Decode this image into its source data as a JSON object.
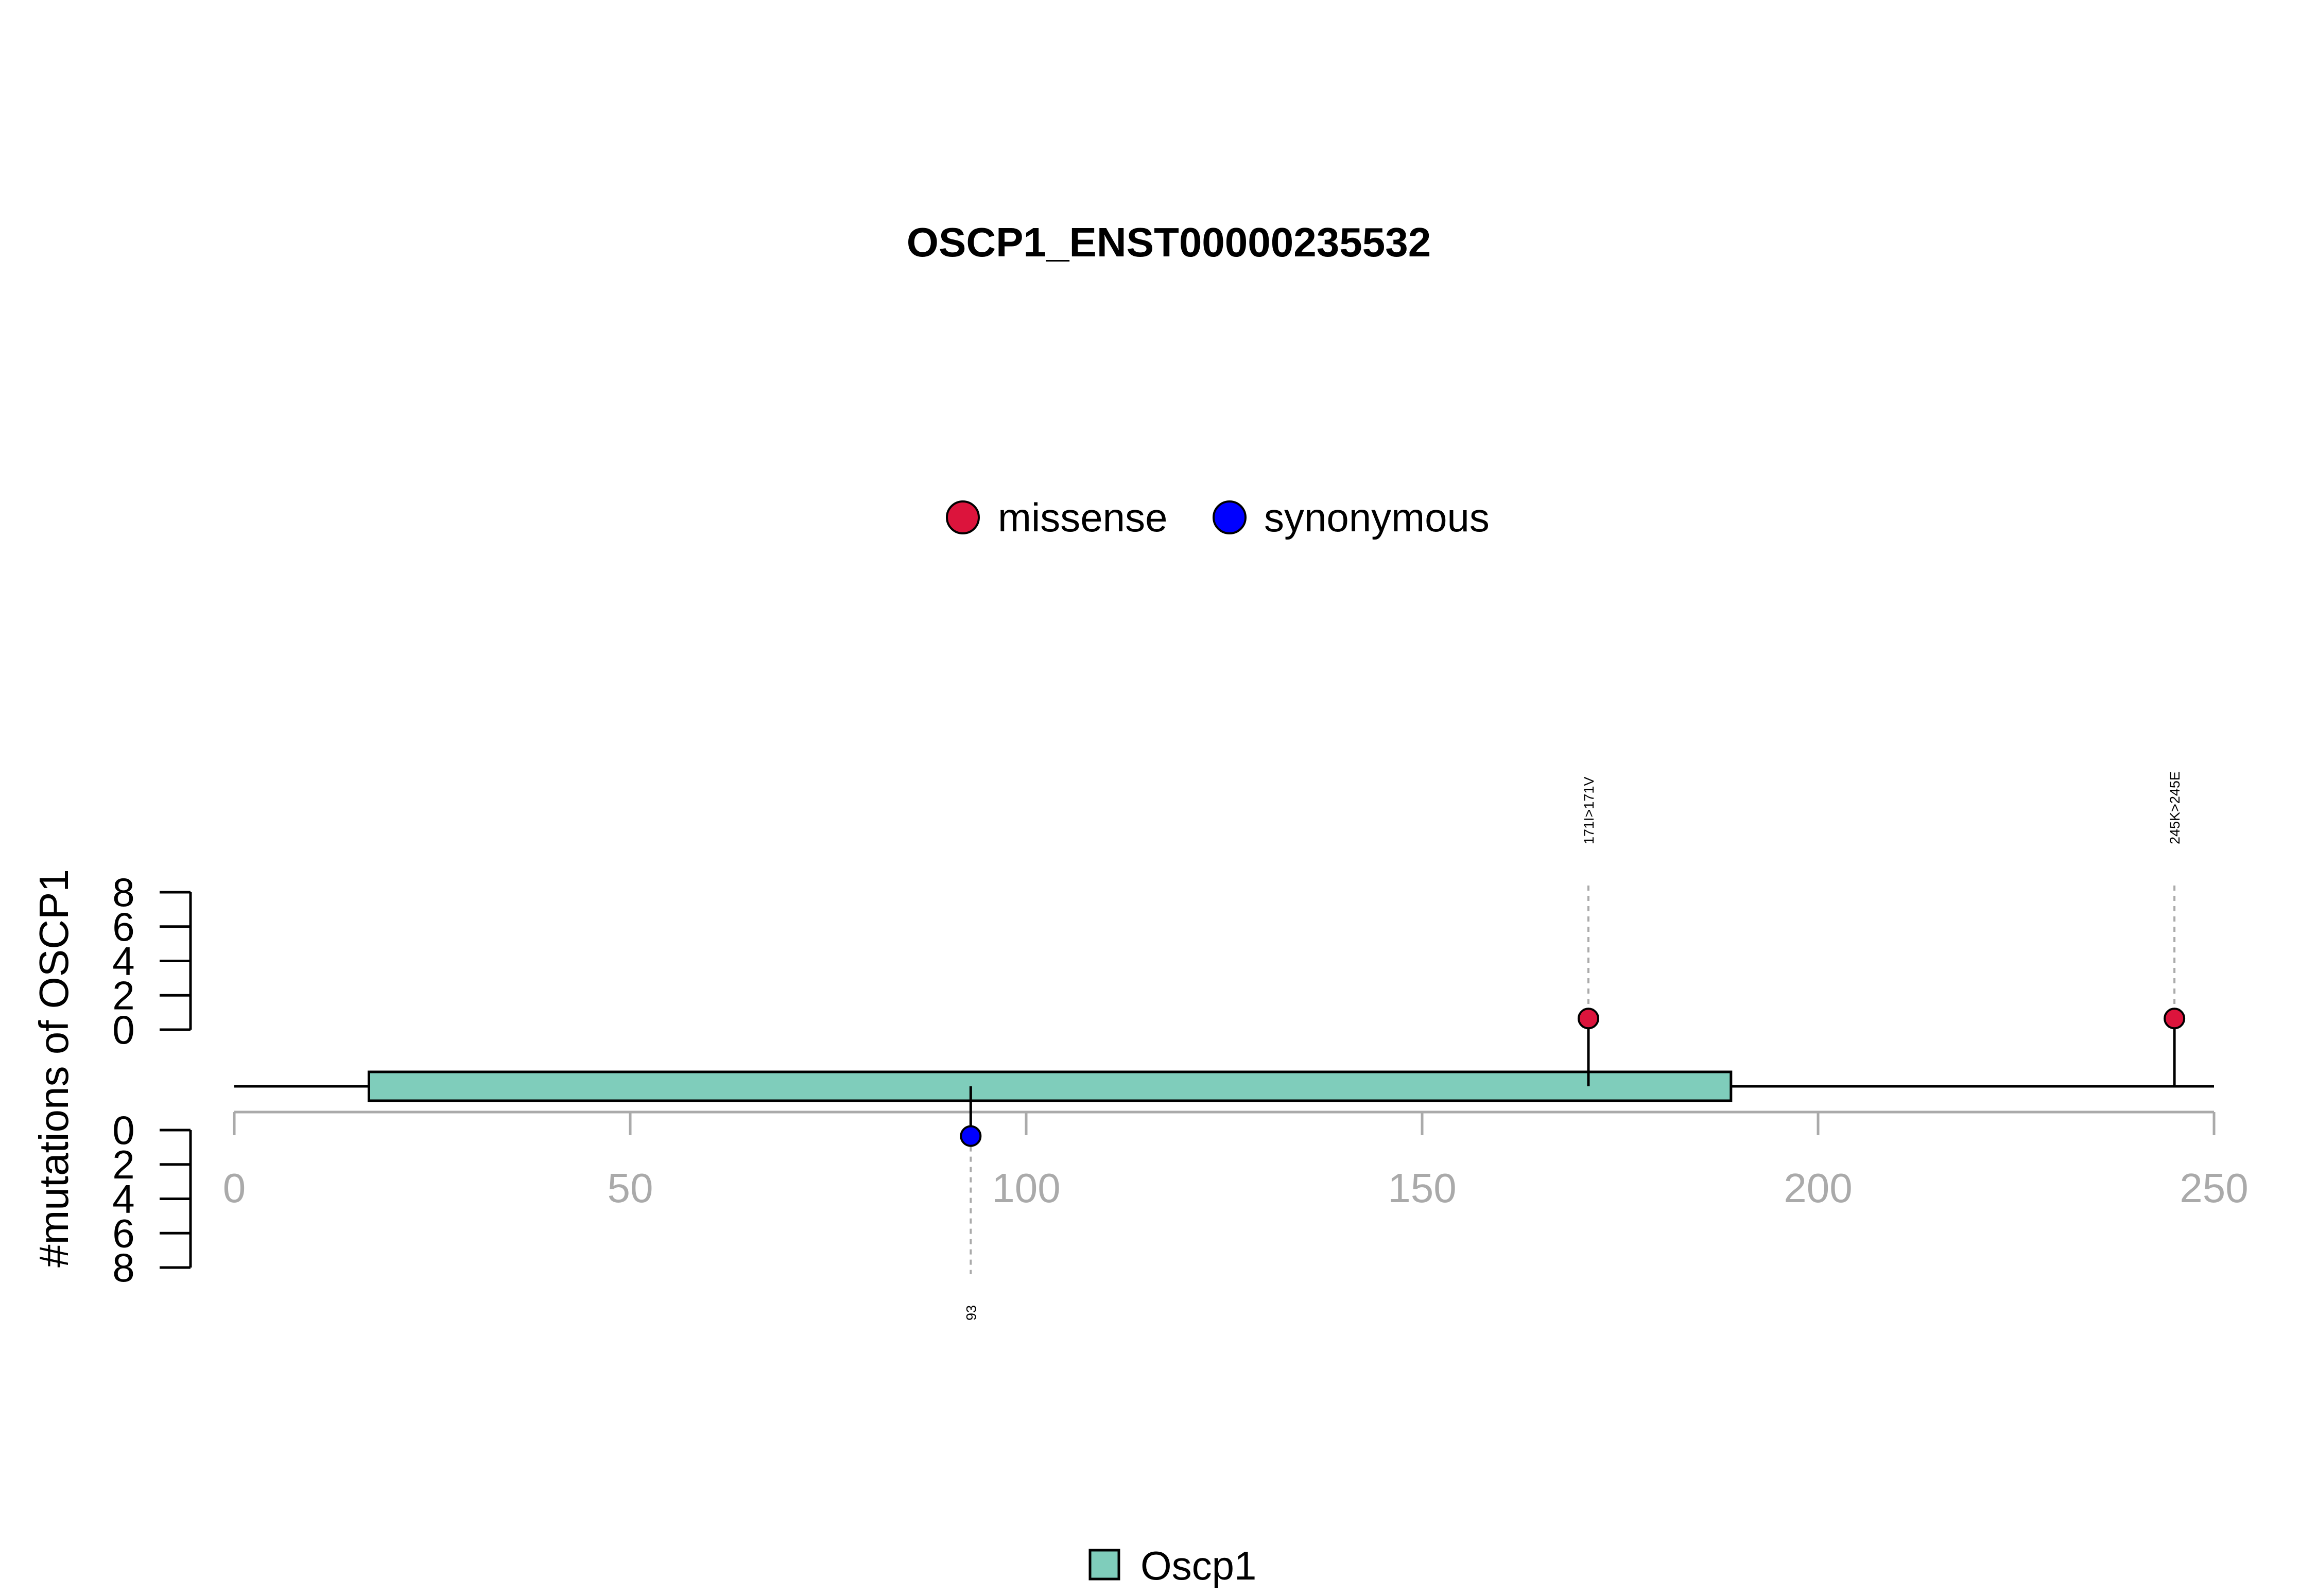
{
  "chart_data": {
    "type": "lollipop",
    "title": "OSCP1_ENST00000235532",
    "ylabel": "#mutations of OSCP1",
    "xlim": [
      0,
      250
    ],
    "xticks": [
      "0",
      "50",
      "100",
      "150",
      "200",
      "250"
    ],
    "ylim_upper": [
      0,
      8
    ],
    "ylim_lower": [
      0,
      8
    ],
    "yticks_upper": [
      "0",
      "2",
      "4",
      "6",
      "8"
    ],
    "yticks_lower": [
      "0",
      "2",
      "4",
      "6",
      "8"
    ],
    "legend_top": [
      {
        "name": "missense",
        "color": "#dc143c"
      },
      {
        "name": "synonymous",
        "color": "#0000ff"
      }
    ],
    "mutations_upper": [
      {
        "position": 171,
        "count": 1,
        "label": "171I>171V",
        "type": "missense",
        "color": "#dc143c"
      },
      {
        "position": 245,
        "count": 1,
        "label": "245K>245E",
        "type": "missense",
        "color": "#dc143c"
      }
    ],
    "mutations_lower": [
      {
        "position": 93,
        "count": 1,
        "label": "93",
        "type": "synonymous",
        "color": "#0000ff"
      }
    ],
    "domains": [
      {
        "name": "Oscp1",
        "start": 17,
        "end": 189,
        "color": "#7fcdbb"
      }
    ],
    "legend_bottom": [
      {
        "name": "Oscp1",
        "color": "#7fcdbb"
      }
    ]
  }
}
